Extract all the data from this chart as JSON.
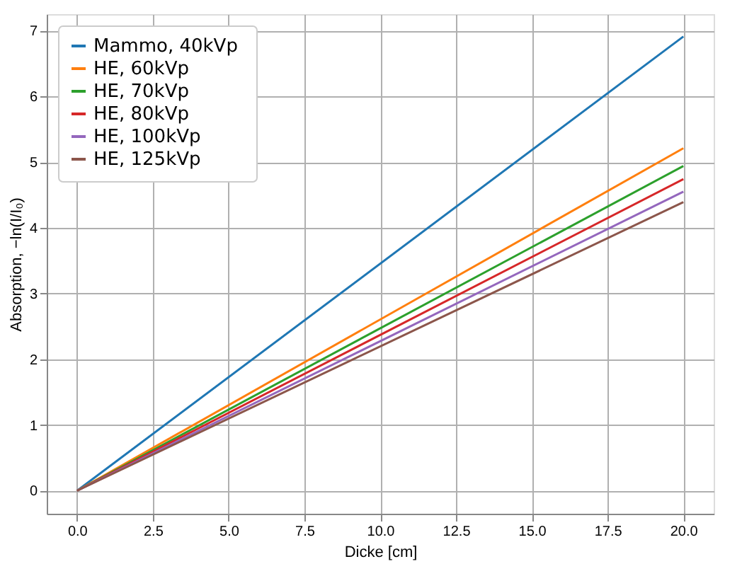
{
  "chart_data": {
    "type": "line",
    "xlabel": "Dicke [cm]",
    "ylabel": "Absorption, −ln(I/I₀)",
    "xlim": [
      -1,
      21
    ],
    "xticks": [
      {
        "value": 0,
        "label": "0.0"
      },
      {
        "value": 2.5,
        "label": "2.5"
      },
      {
        "value": 5,
        "label": "5.0"
      },
      {
        "value": 7.5,
        "label": "7.5"
      },
      {
        "value": 10,
        "label": "10.0"
      },
      {
        "value": 12.5,
        "label": "12.5"
      },
      {
        "value": 15,
        "label": "15.0"
      },
      {
        "value": 17.5,
        "label": "17.5"
      },
      {
        "value": 20,
        "label": "20.0"
      }
    ],
    "ylim": [
      -0.35,
      7.25
    ],
    "yticks": [
      0,
      1,
      2,
      3,
      4,
      5,
      6,
      7
    ],
    "grid": true,
    "legend": "top left",
    "line_style": "solid",
    "marker": "none",
    "x": [
      0,
      20
    ],
    "series": [
      {
        "name": "Mammo,  40kVp",
        "color": "#1f77b4",
        "values": [
          0,
          6.91
        ]
      },
      {
        "name": "HE,         60kVp",
        "color": "#ff7f0e",
        "values": [
          0,
          5.21
        ]
      },
      {
        "name": "HE,         70kVp",
        "color": "#2ca02c",
        "values": [
          0,
          4.94
        ]
      },
      {
        "name": "HE,         80kVp",
        "color": "#d62728",
        "values": [
          0,
          4.74
        ]
      },
      {
        "name": "HE,       100kVp",
        "color": "#9467bd",
        "values": [
          0,
          4.55
        ]
      },
      {
        "name": "HE,       125kVp",
        "color": "#8c564b",
        "values": [
          0,
          4.39
        ]
      }
    ]
  }
}
